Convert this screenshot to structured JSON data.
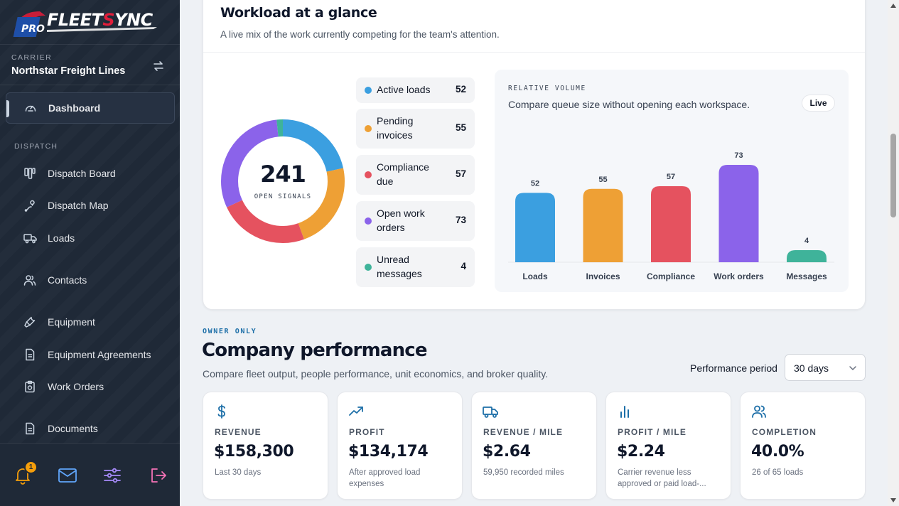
{
  "brand": {
    "logo_text": "PRO FLEETSYNC"
  },
  "carrier": {
    "label": "CARRIER",
    "name": "Northstar Freight Lines"
  },
  "sidebar": {
    "top_item": {
      "label": "Dashboard",
      "icon": "gauge-icon"
    },
    "section_label": "DISPATCH",
    "items": [
      {
        "label": "Dispatch Board",
        "icon": "board-icon"
      },
      {
        "label": "Dispatch Map",
        "icon": "map-route-icon"
      },
      {
        "label": "Loads",
        "icon": "truck-icon"
      },
      {
        "label": "Contacts",
        "icon": "people-icon"
      },
      {
        "label": "Equipment",
        "icon": "wrench-icon"
      },
      {
        "label": "Equipment Agreements",
        "icon": "document-icon"
      },
      {
        "label": "Work Orders",
        "icon": "clipboard-icon"
      },
      {
        "label": "Documents",
        "icon": "file-icon"
      }
    ],
    "footer": {
      "notification_count": "1"
    }
  },
  "workload": {
    "title": "Workload at a glance",
    "subtitle": "A live mix of the work currently competing for the team's attention.",
    "total": "241",
    "total_label": "OPEN SIGNALS",
    "legend": [
      {
        "label": "Active loads",
        "value": "52",
        "color": "#3b9fe0"
      },
      {
        "label": "Pending invoices",
        "value": "55",
        "color": "#eea035"
      },
      {
        "label": "Compliance due",
        "value": "57",
        "color": "#e5525f"
      },
      {
        "label": "Open work orders",
        "value": "73",
        "color": "#8b63ea"
      },
      {
        "label": "Unread messages",
        "value": "4",
        "color": "#3fb39a"
      }
    ]
  },
  "relative_volume": {
    "eyebrow": "RELATIVE VOLUME",
    "subtitle": "Compare queue size without opening each workspace.",
    "live_label": "Live"
  },
  "chart_data": {
    "type": "bar",
    "categories": [
      "Loads",
      "Invoices",
      "Compliance",
      "Work orders",
      "Messages"
    ],
    "values": [
      52,
      55,
      57,
      73,
      4
    ],
    "colors": [
      "#3b9fe0",
      "#eea035",
      "#e5525f",
      "#8b63ea",
      "#3fb39a"
    ],
    "title": "",
    "xlabel": "",
    "ylabel": "",
    "ylim": [
      0,
      73
    ],
    "grid": false
  },
  "performance": {
    "eyebrow": "OWNER ONLY",
    "title": "Company performance",
    "subtitle": "Compare fleet output, people performance, unit economics, and broker quality.",
    "period_label": "Performance period",
    "period_value": "30 days",
    "kpis": [
      {
        "label": "REVENUE",
        "value": "$158,300",
        "note": "Last 30 days",
        "icon": "dollar-icon"
      },
      {
        "label": "PROFIT",
        "value": "$134,174",
        "note": "After approved load expenses",
        "icon": "trend-up-icon"
      },
      {
        "label": "REVENUE / MILE",
        "value": "$2.64",
        "note": "59,950 recorded miles",
        "icon": "truck-icon"
      },
      {
        "label": "PROFIT / MILE",
        "value": "$2.24",
        "note": "Carrier revenue less approved or paid load-...",
        "icon": "bar-chart-icon"
      },
      {
        "label": "COMPLETION",
        "value": "40.0%",
        "note": "26 of 65 loads",
        "icon": "people-icon"
      }
    ]
  }
}
